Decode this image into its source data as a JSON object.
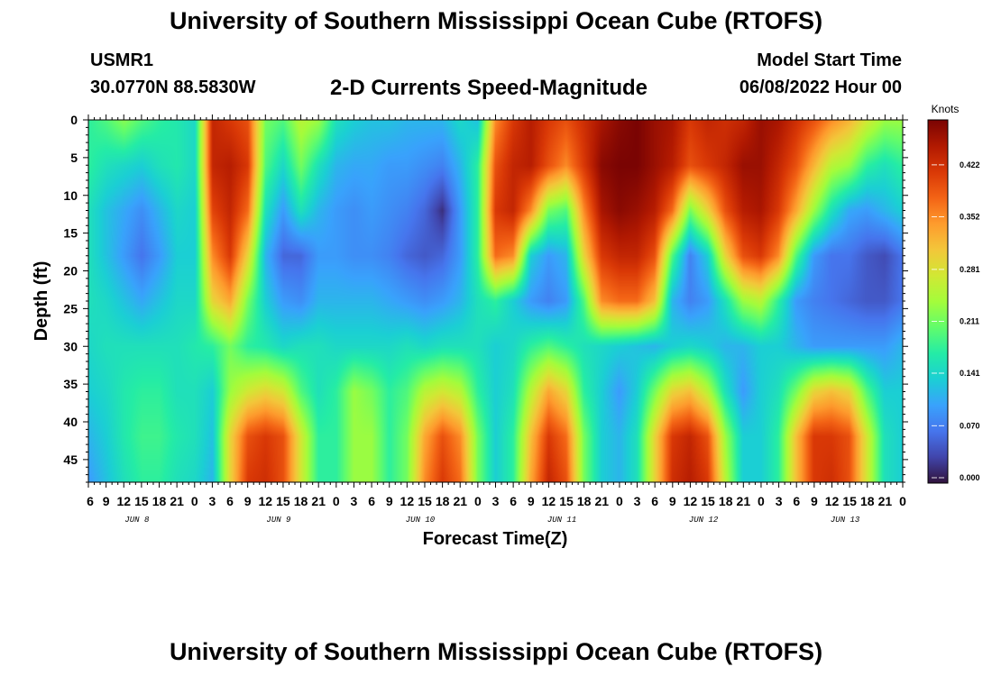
{
  "page": {
    "title": "University of Southern Mississippi Ocean Cube (RTOFS)",
    "title_repeat": "University of Southern Mississippi Ocean Cube (RTOFS)",
    "station": "USMR1",
    "coords": "30.0770N  88.5830W",
    "subtitle": "2-D Currents Speed-Magnitude",
    "model_start_label": "Model Start Time",
    "model_start_value": "06/08/2022 Hour 00"
  },
  "chart_data": {
    "type": "heatmap",
    "title": "2-D Currents Speed-Magnitude",
    "xlabel": "Forecast Time(Z)",
    "ylabel": "Depth (ft)",
    "x_unit": "hour (Z)",
    "x_start": "2022-06-08 06Z",
    "x_end": "2022-06-14 00Z",
    "x_step_hours": 3,
    "x_tick_labels": [
      "6",
      "9",
      "12",
      "15",
      "18",
      "21",
      "0",
      "3",
      "6",
      "9",
      "12",
      "15",
      "18",
      "21",
      "0",
      "3",
      "6",
      "9",
      "12",
      "15",
      "18",
      "21",
      "0",
      "3",
      "6",
      "9",
      "12",
      "15",
      "18",
      "21",
      "0",
      "3",
      "6",
      "9",
      "12",
      "15",
      "18",
      "21",
      "0",
      "3",
      "6",
      "9",
      "12",
      "15",
      "18",
      "21",
      "0"
    ],
    "day_labels": [
      {
        "text": "JUN 8",
        "date": "2022-06-08"
      },
      {
        "text": "JUN 9",
        "date": "2022-06-09"
      },
      {
        "text": "JUN 10",
        "date": "2022-06-10"
      },
      {
        "text": "JUN 11",
        "date": "2022-06-11"
      },
      {
        "text": "JUN 12",
        "date": "2022-06-12"
      },
      {
        "text": "JUN 13",
        "date": "2022-06-13"
      }
    ],
    "y_ticks": [
      0,
      5,
      10,
      15,
      20,
      25,
      30,
      35,
      40,
      45
    ],
    "ylim": [
      48,
      0
    ],
    "y_inverted": true,
    "colorbar": {
      "unit": "Knots",
      "ticks": [
        "0.422",
        "0.352",
        "0.281",
        "0.211",
        "0.141",
        "0.070",
        "0.000"
      ],
      "range": [
        0,
        0.49
      ],
      "colormap": [
        "#30123b",
        "#4145ab",
        "#4675ed",
        "#39a2fc",
        "#1bcfd4",
        "#24eca6",
        "#61fc6c",
        "#a4fc3b",
        "#d1e834",
        "#f3c63a",
        "#fe9b2d",
        "#f36315",
        "#d93806",
        "#b11901",
        "#7a0403"
      ]
    },
    "depths_ft": [
      0,
      6,
      12,
      18,
      24,
      30,
      36,
      42,
      48
    ],
    "speed_grid_note": "rows = depths_ft, columns = hourly-3 times from x_start",
    "speed_knots": [
      [
        0.18,
        0.2,
        0.23,
        0.2,
        0.18,
        0.17,
        0.15,
        0.44,
        0.42,
        0.4,
        0.22,
        0.2,
        0.26,
        0.24,
        0.16,
        0.14,
        0.13,
        0.13,
        0.12,
        0.12,
        0.12,
        0.15,
        0.13,
        0.36,
        0.42,
        0.45,
        0.42,
        0.4,
        0.43,
        0.46,
        0.48,
        0.49,
        0.47,
        0.46,
        0.42,
        0.44,
        0.43,
        0.44,
        0.47,
        0.46,
        0.43,
        0.4,
        0.36,
        0.33,
        0.28,
        0.24,
        0.24
      ],
      [
        0.18,
        0.16,
        0.15,
        0.14,
        0.16,
        0.17,
        0.15,
        0.44,
        0.45,
        0.42,
        0.2,
        0.15,
        0.22,
        0.16,
        0.12,
        0.11,
        0.11,
        0.1,
        0.1,
        0.09,
        0.08,
        0.12,
        0.18,
        0.4,
        0.44,
        0.45,
        0.4,
        0.36,
        0.42,
        0.48,
        0.49,
        0.49,
        0.47,
        0.45,
        0.4,
        0.42,
        0.44,
        0.47,
        0.47,
        0.44,
        0.4,
        0.33,
        0.26,
        0.24,
        0.18,
        0.16,
        0.18
      ],
      [
        0.16,
        0.13,
        0.11,
        0.09,
        0.12,
        0.15,
        0.14,
        0.41,
        0.44,
        0.38,
        0.16,
        0.1,
        0.16,
        0.12,
        0.1,
        0.09,
        0.1,
        0.09,
        0.08,
        0.06,
        0.02,
        0.1,
        0.18,
        0.42,
        0.44,
        0.36,
        0.22,
        0.2,
        0.36,
        0.46,
        0.48,
        0.47,
        0.45,
        0.38,
        0.22,
        0.3,
        0.4,
        0.45,
        0.46,
        0.42,
        0.34,
        0.24,
        0.16,
        0.11,
        0.1,
        0.12,
        0.14
      ],
      [
        0.16,
        0.13,
        0.1,
        0.07,
        0.1,
        0.14,
        0.14,
        0.36,
        0.42,
        0.3,
        0.12,
        0.06,
        0.06,
        0.1,
        0.1,
        0.09,
        0.09,
        0.08,
        0.06,
        0.05,
        0.06,
        0.1,
        0.18,
        0.38,
        0.36,
        0.14,
        0.1,
        0.12,
        0.3,
        0.42,
        0.44,
        0.44,
        0.4,
        0.2,
        0.08,
        0.14,
        0.3,
        0.4,
        0.42,
        0.36,
        0.2,
        0.1,
        0.07,
        0.07,
        0.05,
        0.04,
        0.07
      ],
      [
        0.16,
        0.15,
        0.13,
        0.11,
        0.13,
        0.15,
        0.15,
        0.3,
        0.34,
        0.22,
        0.14,
        0.1,
        0.09,
        0.12,
        0.12,
        0.12,
        0.12,
        0.11,
        0.1,
        0.09,
        0.1,
        0.12,
        0.16,
        0.18,
        0.14,
        0.1,
        0.08,
        0.1,
        0.2,
        0.36,
        0.38,
        0.38,
        0.32,
        0.12,
        0.08,
        0.1,
        0.16,
        0.24,
        0.26,
        0.18,
        0.1,
        0.08,
        0.07,
        0.06,
        0.05,
        0.05,
        0.07
      ],
      [
        0.15,
        0.16,
        0.16,
        0.16,
        0.16,
        0.16,
        0.17,
        0.18,
        0.22,
        0.18,
        0.17,
        0.15,
        0.16,
        0.16,
        0.15,
        0.15,
        0.15,
        0.15,
        0.16,
        0.15,
        0.16,
        0.16,
        0.16,
        0.14,
        0.15,
        0.18,
        0.2,
        0.18,
        0.16,
        0.15,
        0.14,
        0.13,
        0.12,
        0.14,
        0.15,
        0.14,
        0.12,
        0.12,
        0.14,
        0.14,
        0.12,
        0.1,
        0.1,
        0.1,
        0.1,
        0.1,
        0.12
      ],
      [
        0.14,
        0.15,
        0.17,
        0.18,
        0.18,
        0.16,
        0.16,
        0.14,
        0.24,
        0.28,
        0.3,
        0.28,
        0.2,
        0.16,
        0.18,
        0.24,
        0.22,
        0.18,
        0.2,
        0.26,
        0.28,
        0.26,
        0.18,
        0.14,
        0.16,
        0.26,
        0.34,
        0.3,
        0.18,
        0.14,
        0.1,
        0.14,
        0.22,
        0.3,
        0.32,
        0.26,
        0.16,
        0.1,
        0.14,
        0.16,
        0.22,
        0.3,
        0.32,
        0.3,
        0.2,
        0.14,
        0.14
      ],
      [
        0.12,
        0.14,
        0.17,
        0.19,
        0.19,
        0.17,
        0.16,
        0.13,
        0.3,
        0.4,
        0.42,
        0.4,
        0.28,
        0.18,
        0.18,
        0.24,
        0.24,
        0.18,
        0.22,
        0.34,
        0.4,
        0.36,
        0.22,
        0.14,
        0.18,
        0.32,
        0.42,
        0.38,
        0.22,
        0.14,
        0.12,
        0.16,
        0.3,
        0.42,
        0.44,
        0.4,
        0.24,
        0.14,
        0.14,
        0.18,
        0.32,
        0.42,
        0.42,
        0.4,
        0.28,
        0.16,
        0.14
      ],
      [
        0.1,
        0.13,
        0.16,
        0.18,
        0.18,
        0.16,
        0.15,
        0.12,
        0.3,
        0.42,
        0.43,
        0.4,
        0.28,
        0.18,
        0.18,
        0.24,
        0.24,
        0.18,
        0.22,
        0.36,
        0.42,
        0.38,
        0.22,
        0.14,
        0.18,
        0.34,
        0.44,
        0.4,
        0.22,
        0.14,
        0.12,
        0.16,
        0.3,
        0.43,
        0.45,
        0.42,
        0.26,
        0.14,
        0.14,
        0.18,
        0.32,
        0.42,
        0.43,
        0.4,
        0.28,
        0.16,
        0.14
      ]
    ]
  }
}
